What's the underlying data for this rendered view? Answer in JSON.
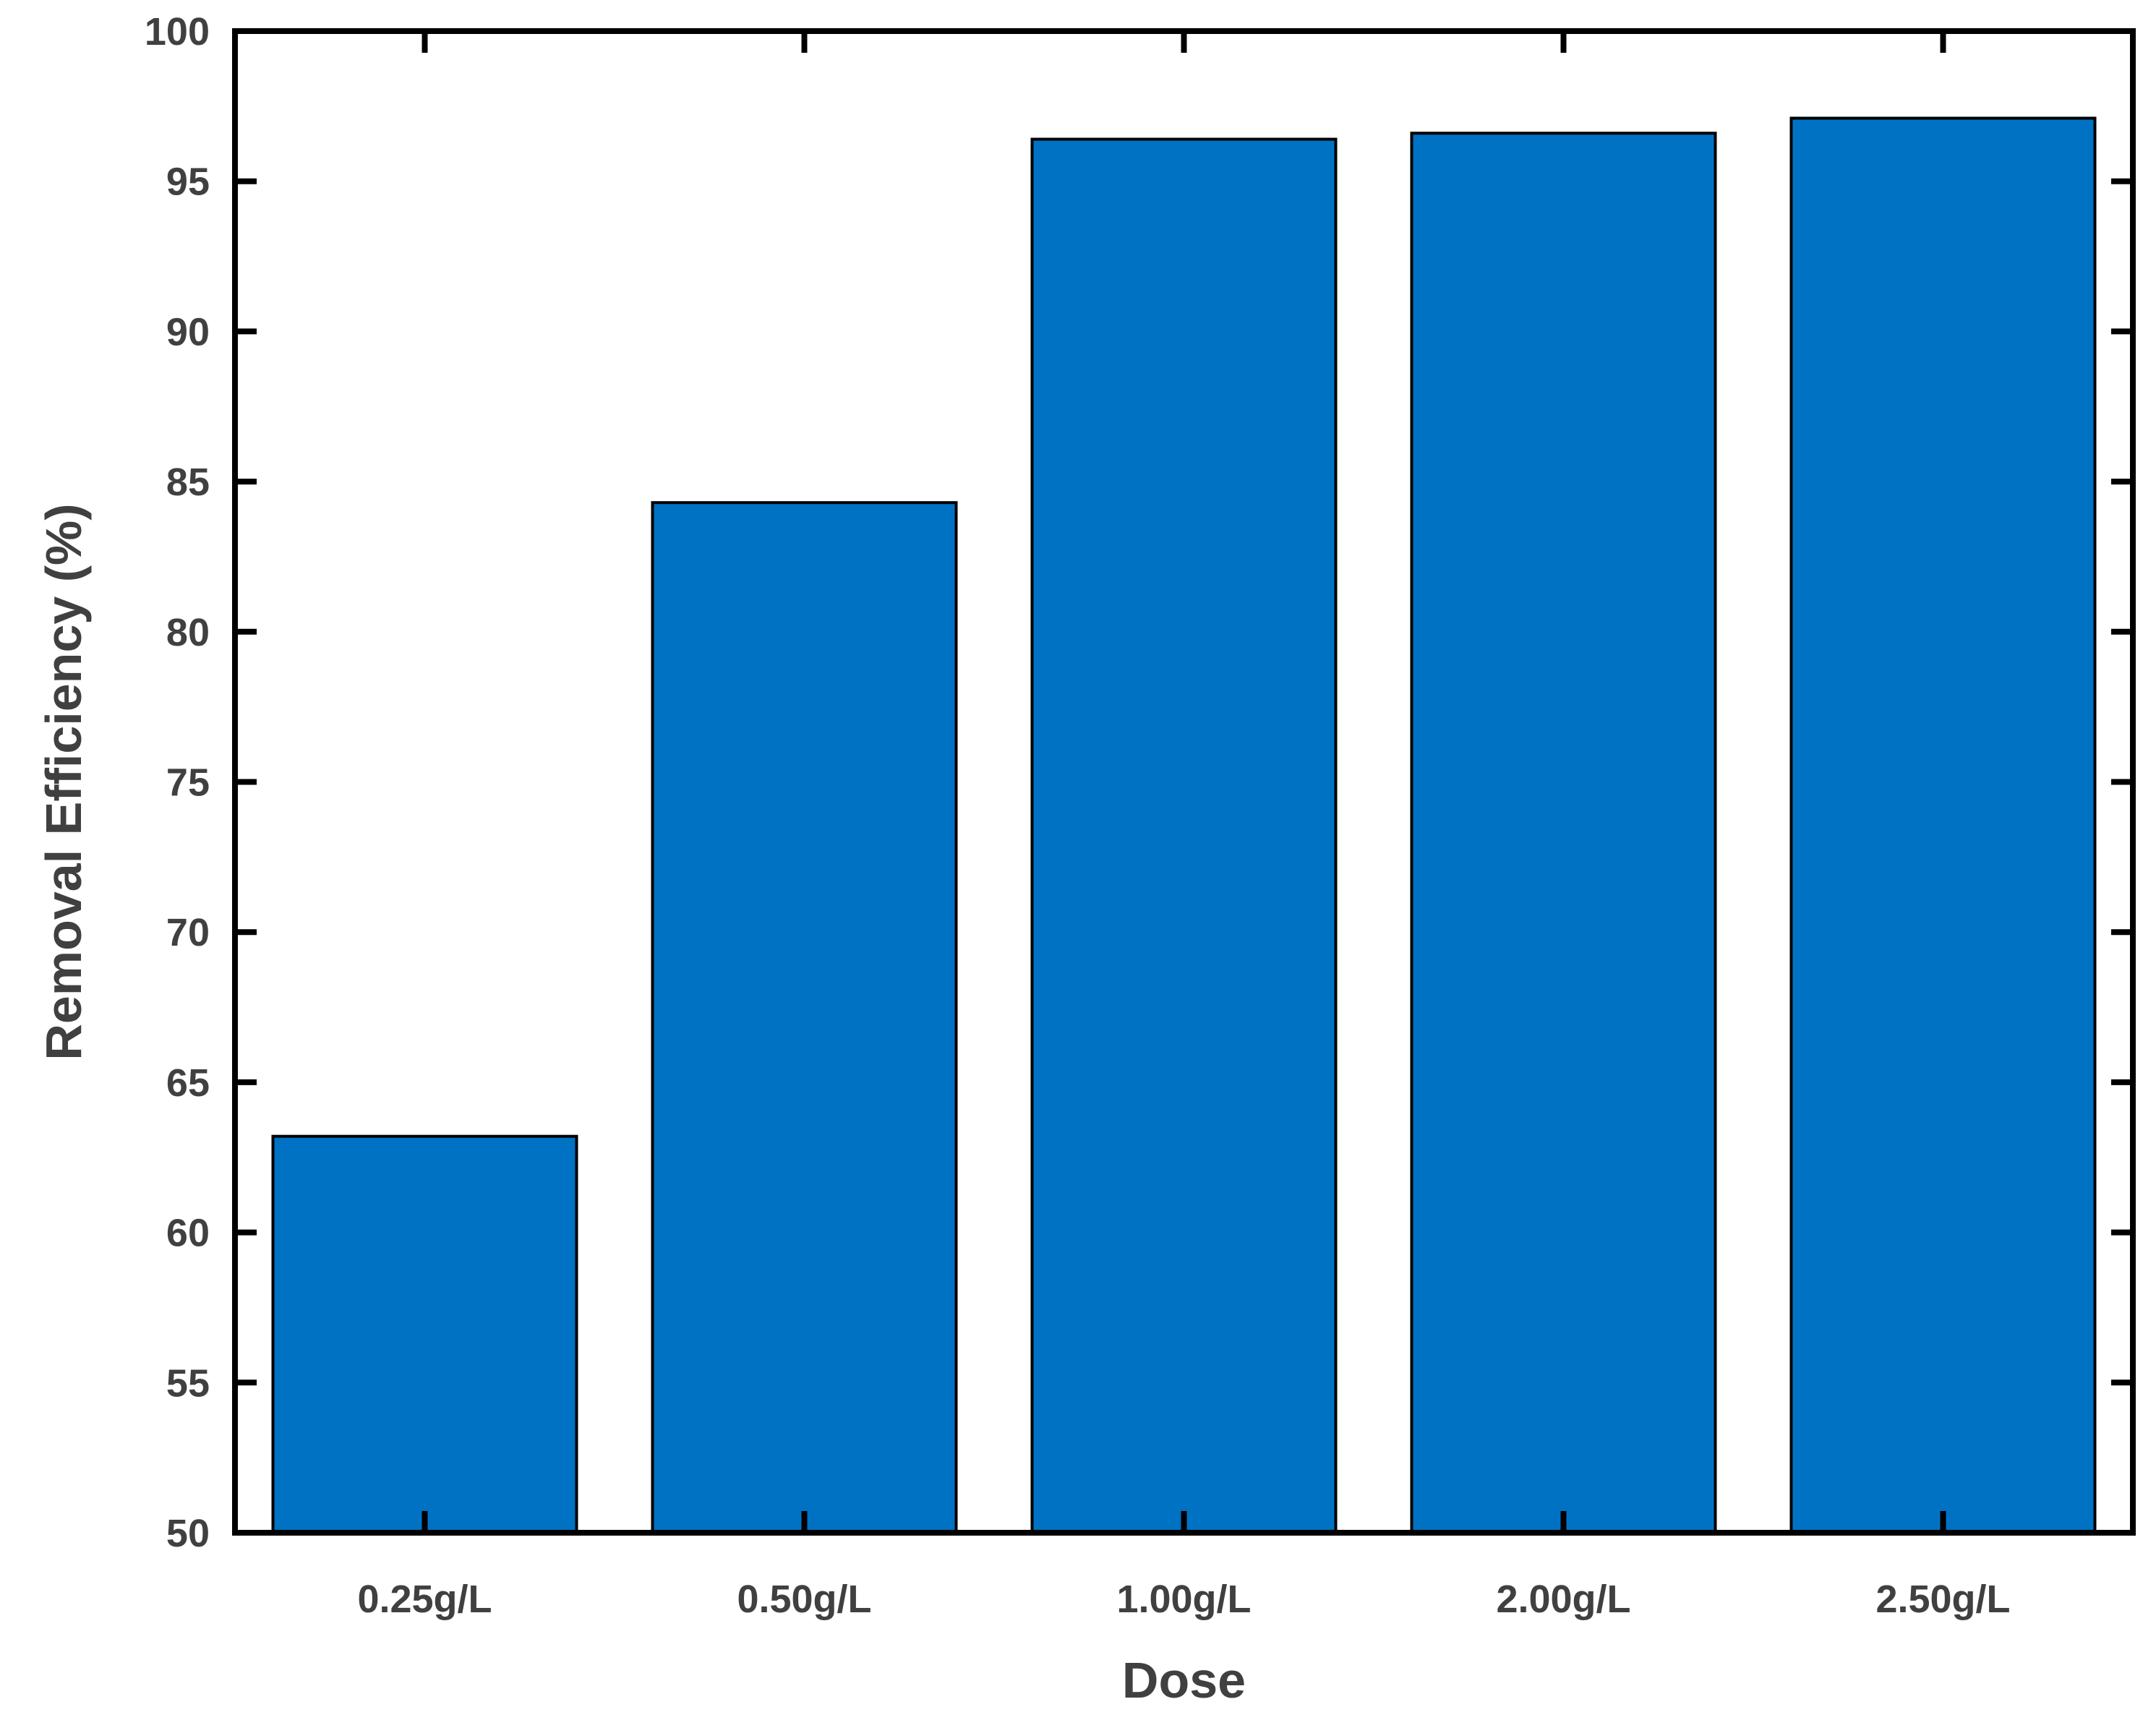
{
  "chart_data": {
    "type": "bar",
    "categories": [
      "0.25g/L",
      "0.50g/L",
      "1.00g/L",
      "2.00g/L",
      "2.50g/L"
    ],
    "values": [
      63.2,
      84.3,
      96.4,
      96.6,
      97.1
    ],
    "title": "",
    "xlabel": "Dose",
    "ylabel": "Removal Efficiency (%)",
    "ylim": [
      50,
      100
    ],
    "yticks": [
      "50",
      "55",
      "60",
      "65",
      "70",
      "75",
      "80",
      "85",
      "90",
      "95",
      "100"
    ],
    "grid": false,
    "bar_color": "#0072C4",
    "bar_edge_color": "#000000",
    "axis_color": "#000000",
    "text_color": "#404040"
  }
}
